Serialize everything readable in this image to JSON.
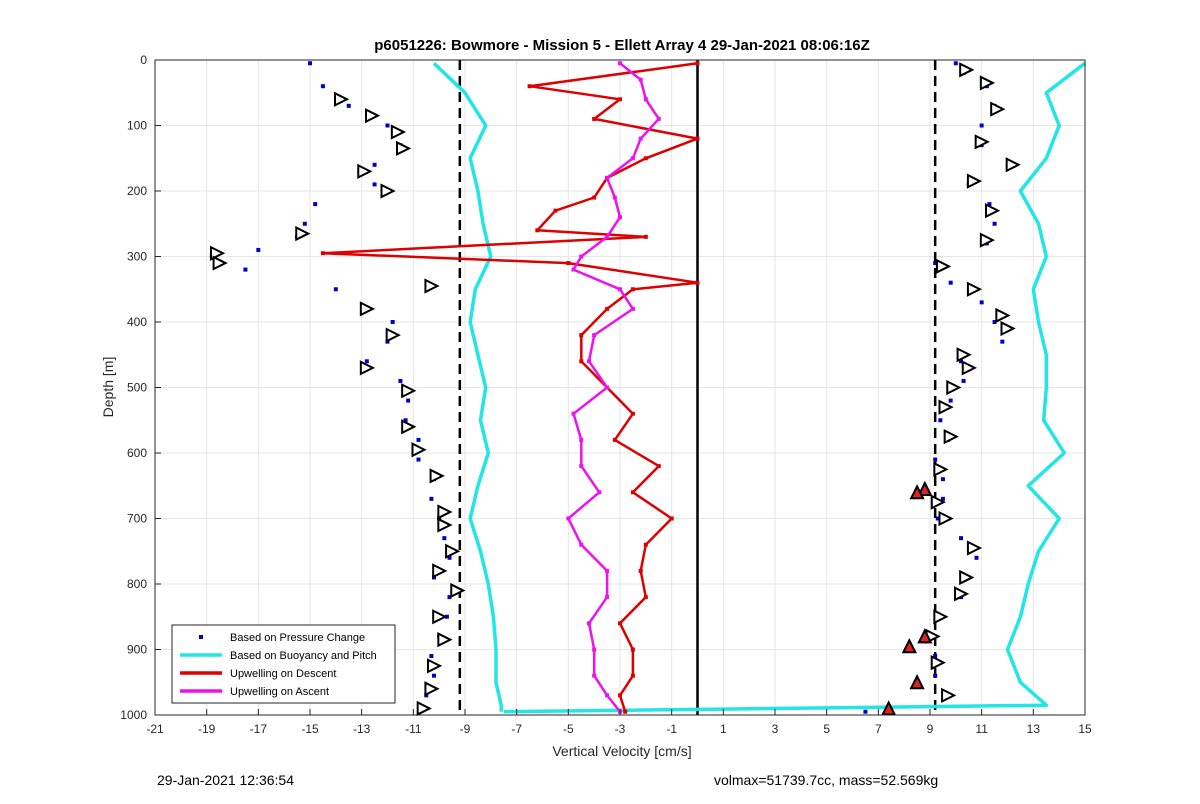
{
  "chart_data": {
    "type": "line",
    "title": "p6051226: Bowmore - Mission 5 - Ellett Array 4 29-Jan-2021 08:06:16Z",
    "xlabel": "Vertical Velocity [cm/s]",
    "ylabel": "Depth [m]",
    "xlim": [
      -21,
      15
    ],
    "ylim": [
      0,
      1000
    ],
    "y_reversed": true,
    "grid": true,
    "legend_position": "bottom-left",
    "x_ticks": [
      -21,
      -19,
      -17,
      -15,
      -13,
      -11,
      -9,
      -7,
      -5,
      -3,
      -1,
      1,
      3,
      5,
      7,
      9,
      11,
      13,
      15
    ],
    "y_ticks": [
      0,
      100,
      200,
      300,
      400,
      500,
      600,
      700,
      800,
      900,
      1000
    ],
    "reference_lines": {
      "dashed": [
        -9.2,
        9.2
      ],
      "solid": [
        0
      ]
    },
    "series": [
      {
        "name": "Based on Pressure Change",
        "style": "points",
        "color": "#0000cc",
        "descent": {
          "depth": [
            5,
            40,
            70,
            100,
            130,
            160,
            190,
            220,
            250,
            270,
            290,
            300,
            320,
            350,
            380,
            400,
            430,
            460,
            490,
            520,
            550,
            580,
            610,
            640,
            670,
            700,
            730,
            760,
            790,
            820,
            850,
            880,
            910,
            940,
            970,
            990
          ],
          "velocity": [
            -15,
            -14.5,
            -13.5,
            -12,
            -11.5,
            -12.5,
            -12.5,
            -14.8,
            -15.2,
            -15.5,
            -17,
            -18.8,
            -17.5,
            -14,
            -12.8,
            -11.8,
            -12,
            -12.8,
            -11.5,
            -11.2,
            -11.3,
            -10.8,
            -10.8,
            -10.2,
            -10.3,
            -10,
            -9.8,
            -9.6,
            -10.2,
            -9.6,
            -9.7,
            -10,
            -10.3,
            -10.2,
            -10.5,
            -10.5
          ]
        },
        "ascent": {
          "depth": [
            5,
            20,
            40,
            70,
            100,
            130,
            160,
            190,
            220,
            250,
            280,
            310,
            340,
            370,
            400,
            430,
            460,
            490,
            520,
            550,
            580,
            610,
            640,
            670,
            700,
            730,
            760,
            790,
            820,
            850,
            880,
            910,
            940,
            970,
            995
          ],
          "velocity": [
            10,
            10.3,
            11.2,
            11.5,
            11,
            11,
            12.2,
            10.5,
            11.3,
            11.5,
            11.2,
            9.2,
            9.8,
            11,
            11.5,
            11.8,
            10.2,
            10.3,
            9.8,
            9.4,
            9.7,
            9.2,
            9.5,
            9.5,
            9.3,
            10.2,
            10.8,
            10.5,
            10.2,
            9.4,
            9.1,
            9.2,
            9.2,
            9.6,
            6.5
          ]
        }
      },
      {
        "name": "Based on Buoyancy and Pitch",
        "style": "line",
        "color": "#22e5e5",
        "descent": {
          "depth": [
            5,
            50,
            100,
            150,
            200,
            250,
            300,
            350,
            400,
            450,
            500,
            550,
            600,
            650,
            700,
            750,
            800,
            850,
            900,
            950,
            985,
            995
          ],
          "velocity": [
            -10.2,
            -9,
            -8.2,
            -8.8,
            -8.5,
            -8.3,
            -8,
            -8.6,
            -8.8,
            -8.5,
            -8.2,
            -8.4,
            -8.1,
            -8.5,
            -8.8,
            -8.4,
            -8.1,
            -7.9,
            -7.8,
            -7.8,
            -7.6,
            -7.6
          ]
        },
        "ascent": {
          "depth": [
            5,
            50,
            100,
            150,
            200,
            250,
            300,
            350,
            400,
            450,
            500,
            550,
            600,
            650,
            700,
            750,
            800,
            850,
            900,
            950,
            985,
            995
          ],
          "velocity": [
            15,
            13.5,
            14,
            13.5,
            12.5,
            13.2,
            13.5,
            13,
            13.2,
            13.5,
            13.5,
            13.4,
            14.2,
            12.8,
            14,
            13.2,
            12.8,
            12.5,
            12,
            12.5,
            13.5,
            -7.5
          ]
        }
      },
      {
        "name": "Upwelling on Descent",
        "style": "line-markers",
        "color": "#dd0000",
        "depth": [
          5,
          40,
          60,
          90,
          120,
          150,
          180,
          210,
          230,
          260,
          270,
          295,
          310,
          340,
          350,
          380,
          420,
          460,
          500,
          540,
          580,
          620,
          660,
          700,
          740,
          780,
          820,
          860,
          900,
          940,
          970,
          995
        ],
        "velocity": [
          0,
          -6.5,
          -3,
          -4,
          0,
          -2,
          -3.5,
          -4,
          -5.5,
          -6.2,
          -2,
          -14.5,
          -5,
          0,
          -2.5,
          -3.5,
          -4.5,
          -4.5,
          -3.5,
          -2.5,
          -3.2,
          -1.5,
          -2.5,
          -1,
          -2,
          -2.2,
          -2,
          -3,
          -2.5,
          -2.5,
          -3,
          -2.8
        ]
      },
      {
        "name": "Upwelling on Ascent",
        "style": "line-markers",
        "color": "#ee11ee",
        "depth": [
          5,
          30,
          60,
          90,
          120,
          150,
          180,
          210,
          240,
          270,
          300,
          320,
          350,
          380,
          420,
          460,
          500,
          540,
          580,
          620,
          660,
          700,
          740,
          780,
          820,
          860,
          900,
          940,
          970,
          995
        ],
        "velocity": [
          -3,
          -2.2,
          -2,
          -1.5,
          -2.2,
          -2.5,
          -3.5,
          -3.2,
          -3,
          -3.5,
          -4.5,
          -4.8,
          -3,
          -2.5,
          -4,
          -4.2,
          -3.5,
          -4.8,
          -4.5,
          -4.5,
          -3.8,
          -5,
          -4.5,
          -3.5,
          -3.5,
          -4.2,
          -4,
          -4,
          -3.5,
          -3
        ]
      },
      {
        "name": "",
        "style": "markers",
        "marker": "triangle",
        "color": "#000000",
        "descent": {
          "depth": [
            60,
            85,
            110,
            135,
            170,
            200,
            265,
            295,
            310,
            345,
            380,
            420,
            470,
            505,
            560,
            595,
            635,
            690,
            710,
            750,
            780,
            810,
            850,
            885,
            925,
            960,
            990
          ],
          "velocity": [
            -13.8,
            -12.6,
            -11.6,
            -11.4,
            -12.9,
            -12,
            -15.3,
            -18.6,
            -18.5,
            -10.3,
            -12.8,
            -11.8,
            -12.8,
            -11.2,
            -11.2,
            -10.8,
            -10.1,
            -9.8,
            -9.8,
            -9.5,
            -10,
            -9.3,
            -10,
            -9.8,
            -10.2,
            -10.3,
            -10.6
          ]
        },
        "ascent": {
          "depth": [
            15,
            35,
            75,
            125,
            160,
            185,
            230,
            275,
            315,
            350,
            390,
            410,
            450,
            470,
            500,
            530,
            575,
            625,
            675,
            700,
            745,
            790,
            815,
            850,
            880,
            920,
            970
          ],
          "velocity": [
            10.4,
            11.2,
            11.6,
            11,
            12.2,
            10.7,
            11.4,
            11.2,
            9.5,
            10.7,
            11.8,
            12,
            10.3,
            10.5,
            9.9,
            9.6,
            9.8,
            9.4,
            9.3,
            9.6,
            10.7,
            10.4,
            10.2,
            9.4,
            9.1,
            9.3,
            9.7
          ]
        }
      },
      {
        "name": "",
        "style": "markers",
        "marker": "triangle-filled",
        "color": "#dd2222",
        "depth": [
          655,
          660,
          880,
          895,
          950,
          990
        ],
        "velocity": [
          8.8,
          8.5,
          8.8,
          8.2,
          8.5,
          7.4
        ]
      }
    ]
  },
  "legend": {
    "items": [
      {
        "label": "Based on Pressure Change",
        "color": "#0000cc",
        "kind": "point"
      },
      {
        "label": "Based on Buoyancy and Pitch",
        "color": "#22e5e5",
        "kind": "line"
      },
      {
        "label": "Upwelling on Descent",
        "color": "#dd0000",
        "kind": "line"
      },
      {
        "label": "Upwelling on Ascent",
        "color": "#ee11ee",
        "kind": "line"
      }
    ]
  },
  "footer": {
    "timestamp": "29-Jan-2021 12:36:54",
    "info": "volmax=51739.7cc, mass=52.569kg"
  }
}
